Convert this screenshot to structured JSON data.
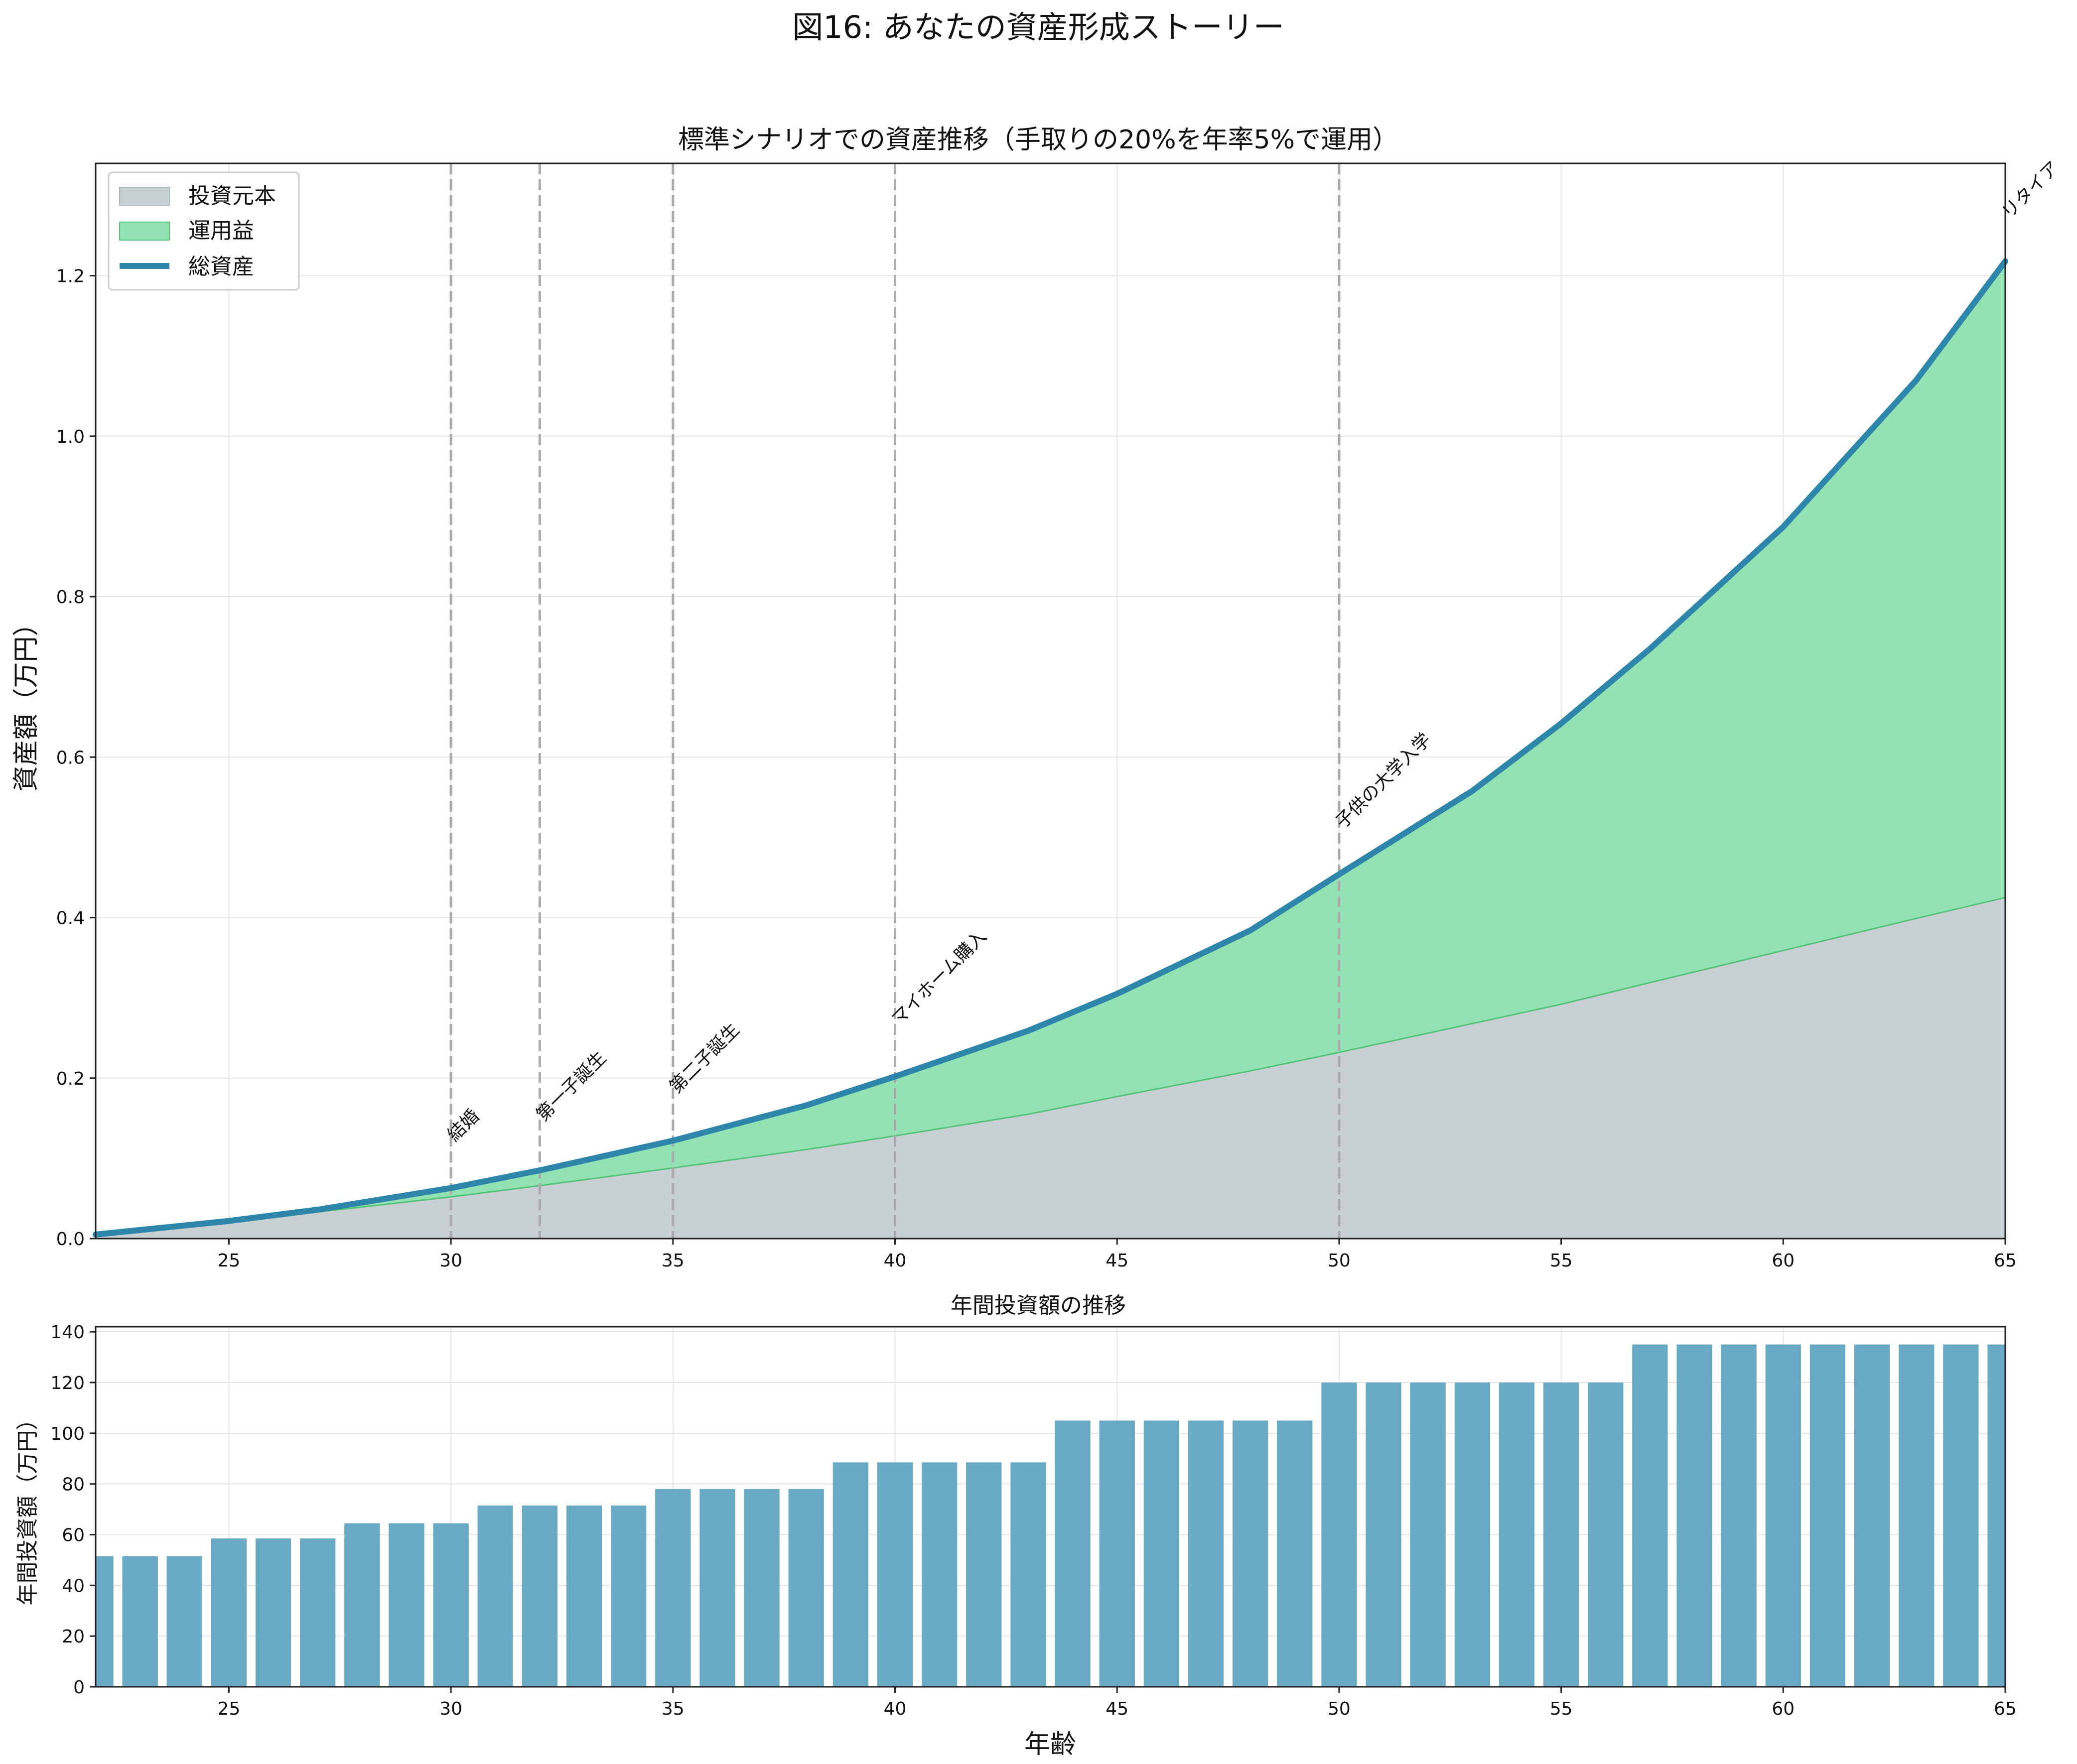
{
  "figure_title": "図16: あなたの資産形成ストーリー",
  "colors": {
    "principal_fill": "#c8d0d4",
    "gain_fill": "#93e2b3",
    "gain_edge": "#55c27a",
    "total_line": "#2e86ab",
    "bar": "#6aa9c4",
    "event_line": "#aaaaaa",
    "grid": "#e4e4e4"
  },
  "chart_data": [
    {
      "type": "area",
      "title": "標準シナリオでの資産推移（手取りの20%を年率5%で運用）",
      "xlabel": "",
      "ylabel": "資産額（万円）",
      "xlim": [
        22,
        65
      ],
      "ylim": [
        0,
        1.34
      ],
      "grid": true,
      "legend_position": "top-left",
      "x_ticks": [
        25,
        30,
        35,
        40,
        45,
        50,
        55,
        60,
        65
      ],
      "y_ticks": [
        0.0,
        0.2,
        0.4,
        0.6,
        0.8,
        1.0,
        1.2
      ],
      "x_tick_labels": [
        "25",
        "30",
        "35",
        "40",
        "45",
        "50",
        "55",
        "60",
        "65"
      ],
      "y_tick_labels": [
        "0.0",
        "0.2",
        "0.4",
        "0.6",
        "0.8",
        "1.0",
        "1.2"
      ],
      "legend": [
        "投資元本",
        "運用益",
        "総資産"
      ],
      "x": [
        22,
        25,
        27,
        30,
        32,
        35,
        38,
        40,
        43,
        45,
        48,
        50,
        53,
        55,
        57,
        60,
        63,
        65
      ],
      "series": [
        {
          "name": "投資元本",
          "values": [
            0.005,
            0.021,
            0.033,
            0.052,
            0.066,
            0.088,
            0.111,
            0.128,
            0.155,
            0.177,
            0.209,
            0.232,
            0.268,
            0.292,
            0.319,
            0.359,
            0.399,
            0.425
          ]
        },
        {
          "name": "総資産",
          "values": [
            0.005,
            0.022,
            0.036,
            0.063,
            0.085,
            0.122,
            0.166,
            0.202,
            0.259,
            0.305,
            0.384,
            0.454,
            0.558,
            0.642,
            0.735,
            0.887,
            1.07,
            1.218
          ]
        }
      ],
      "annotations": [
        {
          "x": 30,
          "label": "結婚",
          "y": 0.12
        },
        {
          "x": 32,
          "label": "第一子誕生",
          "y": 0.145
        },
        {
          "x": 35,
          "label": "第二子誕生",
          "y": 0.18
        },
        {
          "x": 40,
          "label": "マイホーム購入",
          "y": 0.265
        },
        {
          "x": 50,
          "label": "子供の大学入学",
          "y": 0.51
        },
        {
          "x": 65,
          "label": "リタイア",
          "y": 1.27
        }
      ],
      "event_lines": [
        30,
        32,
        35,
        40,
        50
      ]
    },
    {
      "type": "bar",
      "title": "年間投資額の推移",
      "xlabel": "年齢",
      "ylabel": "年間投資額（万円）",
      "xlim": [
        22,
        65
      ],
      "ylim": [
        0,
        142
      ],
      "grid": true,
      "x_ticks": [
        25,
        30,
        35,
        40,
        45,
        50,
        55,
        60,
        65
      ],
      "y_ticks": [
        0,
        20,
        40,
        60,
        80,
        100,
        120,
        140
      ],
      "x_tick_labels": [
        "25",
        "30",
        "35",
        "40",
        "45",
        "50",
        "55",
        "60",
        "65"
      ],
      "y_tick_labels": [
        "0",
        "20",
        "40",
        "60",
        "80",
        "100",
        "120",
        "140"
      ],
      "categories": [
        22,
        23,
        24,
        25,
        26,
        27,
        28,
        29,
        30,
        31,
        32,
        33,
        34,
        35,
        36,
        37,
        38,
        39,
        40,
        41,
        42,
        43,
        44,
        45,
        46,
        47,
        48,
        49,
        50,
        51,
        52,
        53,
        54,
        55,
        56,
        57,
        58,
        59,
        60,
        61,
        62,
        63,
        64,
        65
      ],
      "values": [
        51.5,
        51.5,
        51.5,
        58.5,
        58.5,
        58.5,
        64.5,
        64.5,
        64.5,
        71.5,
        71.5,
        71.5,
        71.5,
        78,
        78,
        78,
        78,
        88.5,
        88.5,
        88.5,
        88.5,
        88.5,
        105,
        105,
        105,
        105,
        105,
        105,
        120,
        120,
        120,
        120,
        120,
        120,
        120,
        135,
        135,
        135,
        135,
        135,
        135,
        135,
        135,
        135
      ]
    }
  ]
}
